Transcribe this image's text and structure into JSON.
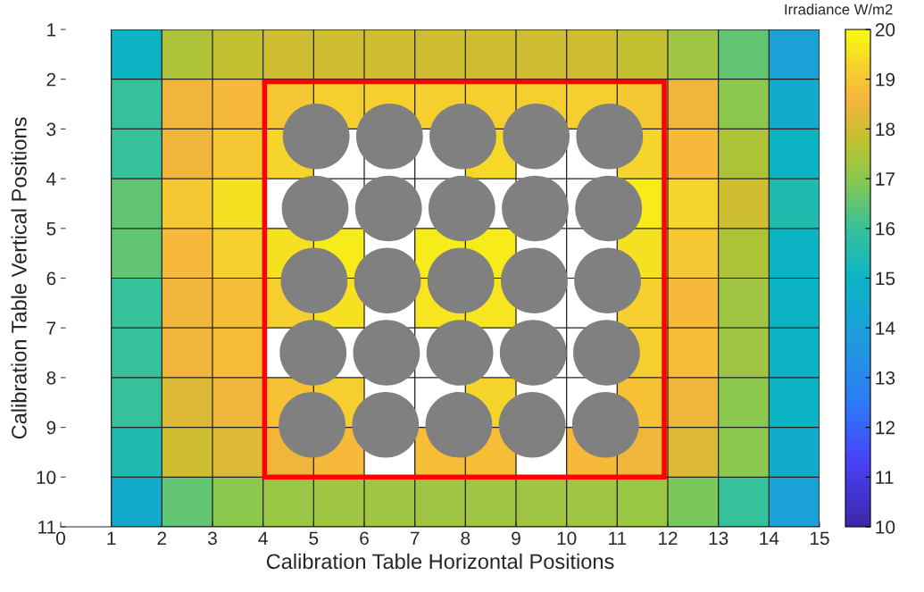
{
  "chart_data": {
    "type": "heatmap",
    "xlabel": "Calibration Table Horizontal Positions",
    "ylabel": "Calibration Table Vertical Positions",
    "clabel": "Irradiance W/m2",
    "x": [
      1.5,
      2.5,
      3.5,
      4.5,
      5.5,
      6.5,
      7.5,
      8.5,
      9.5,
      10.5,
      11.5,
      12.5,
      13.5,
      14.5
    ],
    "y": [
      1.5,
      2.5,
      3.5,
      4.5,
      5.5,
      6.5,
      7.5,
      8.5,
      9.5,
      10.5
    ],
    "cells": [
      [
        15,
        17.5,
        17.8,
        18,
        18,
        18,
        18,
        18,
        18,
        18,
        17.8,
        17.3,
        16.5,
        14
      ],
      [
        16,
        18.5,
        18.7,
        19,
        19.2,
        19.2,
        19.2,
        19.2,
        19.2,
        19.2,
        19,
        18.5,
        17,
        14.5
      ],
      [
        16,
        18.5,
        19,
        19.3,
        null,
        null,
        null,
        19.4,
        null,
        null,
        19.3,
        18.7,
        17.5,
        15
      ],
      [
        16.5,
        19,
        19.5,
        null,
        null,
        null,
        null,
        null,
        null,
        null,
        19.7,
        19.3,
        18,
        15.5
      ],
      [
        16.5,
        18.7,
        19.2,
        19.5,
        19.7,
        null,
        19.7,
        19.7,
        null,
        null,
        19.5,
        19,
        17.5,
        15
      ],
      [
        16,
        18.5,
        18.8,
        19.2,
        19.5,
        null,
        19.6,
        19.6,
        null,
        null,
        19.2,
        18.7,
        17.3,
        15
      ],
      [
        16,
        18.5,
        18.8,
        null,
        null,
        null,
        null,
        null,
        null,
        null,
        19.2,
        18.8,
        17.3,
        15
      ],
      [
        16,
        18.2,
        18.5,
        18.9,
        19.2,
        null,
        null,
        19.3,
        null,
        null,
        18.9,
        18.5,
        17,
        15
      ],
      [
        15.5,
        18,
        18.2,
        18.5,
        18.7,
        null,
        18.8,
        18.8,
        null,
        18.7,
        18.5,
        18.2,
        17,
        14.5
      ],
      [
        14.5,
        16.5,
        17,
        17.2,
        17.3,
        17.3,
        17.3,
        17.3,
        17.3,
        17.3,
        17.2,
        16.8,
        16,
        14
      ]
    ],
    "xlim": [
      0,
      15
    ],
    "ylim": [
      11,
      1
    ],
    "xticks": [
      0,
      1,
      2,
      3,
      4,
      5,
      6,
      7,
      8,
      9,
      10,
      11,
      12,
      13,
      14,
      15
    ],
    "yticks": [
      1,
      2,
      3,
      4,
      5,
      6,
      7,
      8,
      9,
      10,
      11
    ],
    "clim": [
      10,
      20
    ],
    "cticks": [
      10,
      11,
      12,
      13,
      14,
      15,
      16,
      17,
      18,
      19,
      20
    ],
    "grid": true
  }
}
